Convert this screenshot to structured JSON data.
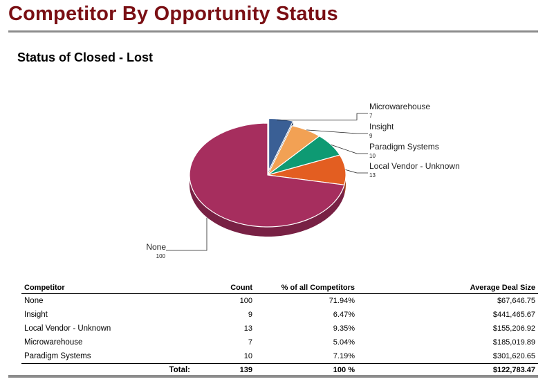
{
  "page": {
    "title": "Competitor By Opportunity Status"
  },
  "chart_data": {
    "type": "pie",
    "title": "Status of Closed - Lost",
    "slices": [
      {
        "label": "Microwarehouse",
        "value": 7,
        "color": "#3a5f95",
        "exploded": true
      },
      {
        "label": "Insight",
        "value": 9,
        "color": "#f2a154"
      },
      {
        "label": "Paradigm Systems",
        "value": 10,
        "color": "#0e9a73"
      },
      {
        "label": "Local Vendor - Unknown",
        "value": 13,
        "color": "#e35e21"
      },
      {
        "label": "None",
        "value": 100,
        "color": "#a62e5e"
      }
    ]
  },
  "table": {
    "headers": {
      "competitor": "Competitor",
      "count": "Count",
      "pct": "% of all Competitors",
      "avg": "Average Deal Size"
    },
    "rows": [
      {
        "competitor": "None",
        "count": "100",
        "pct": "71.94%",
        "avg": "$67,646.75"
      },
      {
        "competitor": "Insight",
        "count": "9",
        "pct": "6.47%",
        "avg": "$441,465.67"
      },
      {
        "competitor": "Local Vendor - Unknown",
        "count": "13",
        "pct": "9.35%",
        "avg": "$155,206.92"
      },
      {
        "competitor": "Microwarehouse",
        "count": "7",
        "pct": "5.04%",
        "avg": "$185,019.89"
      },
      {
        "competitor": "Paradigm Systems",
        "count": "10",
        "pct": "7.19%",
        "avg": "$301,620.65"
      }
    ],
    "total": {
      "label": "Total:",
      "count": "139",
      "pct": "100 %",
      "avg": "$122,783.47"
    }
  }
}
